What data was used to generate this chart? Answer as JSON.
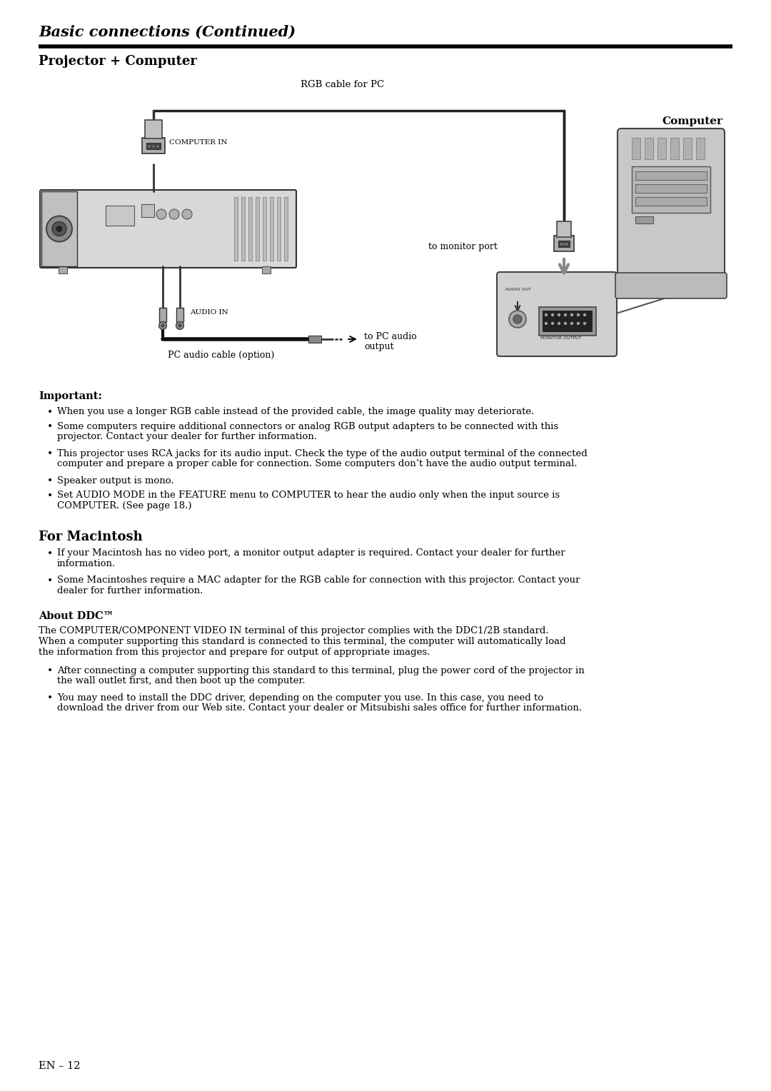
{
  "title_italic": "Basic connections (Continued)",
  "section1": "Projector + Computer",
  "rgb_cable_label": "RGB cable for PC",
  "computer_label": "Computer",
  "computer_in_label": "COMPUTER IN",
  "audio_in_label": "AUDIO IN",
  "pc_audio_cable_label": "PC audio cable (option)",
  "to_monitor_port_label": "to monitor port",
  "to_pc_audio_line1": "to PC audio",
  "to_pc_audio_line2": "output",
  "important_header": "Important:",
  "important_bullets": [
    "When you use a longer RGB cable instead of the provided cable, the image quality may deteriorate.",
    "Some computers require additional connectors or analog RGB output adapters to be connected with this\nprojector. Contact your dealer for further information.",
    "This projector uses RCA jacks for its audio input. Check the type of the audio output terminal of the connected\ncomputer and prepare a proper cable for connection. Some computers don’t have the audio output terminal.",
    "Speaker output is mono.",
    "Set AUDIO MODE in the FEATURE menu to COMPUTER to hear the audio only when the input source is\nCOMPUTER. (See page 18.)"
  ],
  "for_mac_header": "For Macintosh",
  "for_mac_bullets": [
    "If your Macintosh has no video port, a monitor output adapter is required. Contact your dealer for further\ninformation.",
    "Some Macintoshes require a MAC adapter for the RGB cable for connection with this projector. Contact your\ndealer for further information."
  ],
  "ddc_header": "About DDC™",
  "ddc_body": "The COMPUTER/COMPONENT VIDEO IN terminal of this projector complies with the DDC1/2B standard.\nWhen a computer supporting this standard is connected to this terminal, the computer will automatically load\nthe information from this projector and prepare for output of appropriate images.",
  "ddc_bullets": [
    "After connecting a computer supporting this standard to this terminal, plug the power cord of the projector in\nthe wall outlet first, and then boot up the computer.",
    "You may need to install the DDC driver, depending on the computer you use. In this case, you need to\ndownload the driver from our Web site. Contact your dealer or Mitsubishi sales office for further information."
  ],
  "page_label": "EN – 12",
  "bg_color": "#ffffff",
  "text_color": "#000000",
  "cable_color": "#333333",
  "gray_light": "#cccccc",
  "gray_mid": "#aaaaaa",
  "gray_dark": "#666666"
}
